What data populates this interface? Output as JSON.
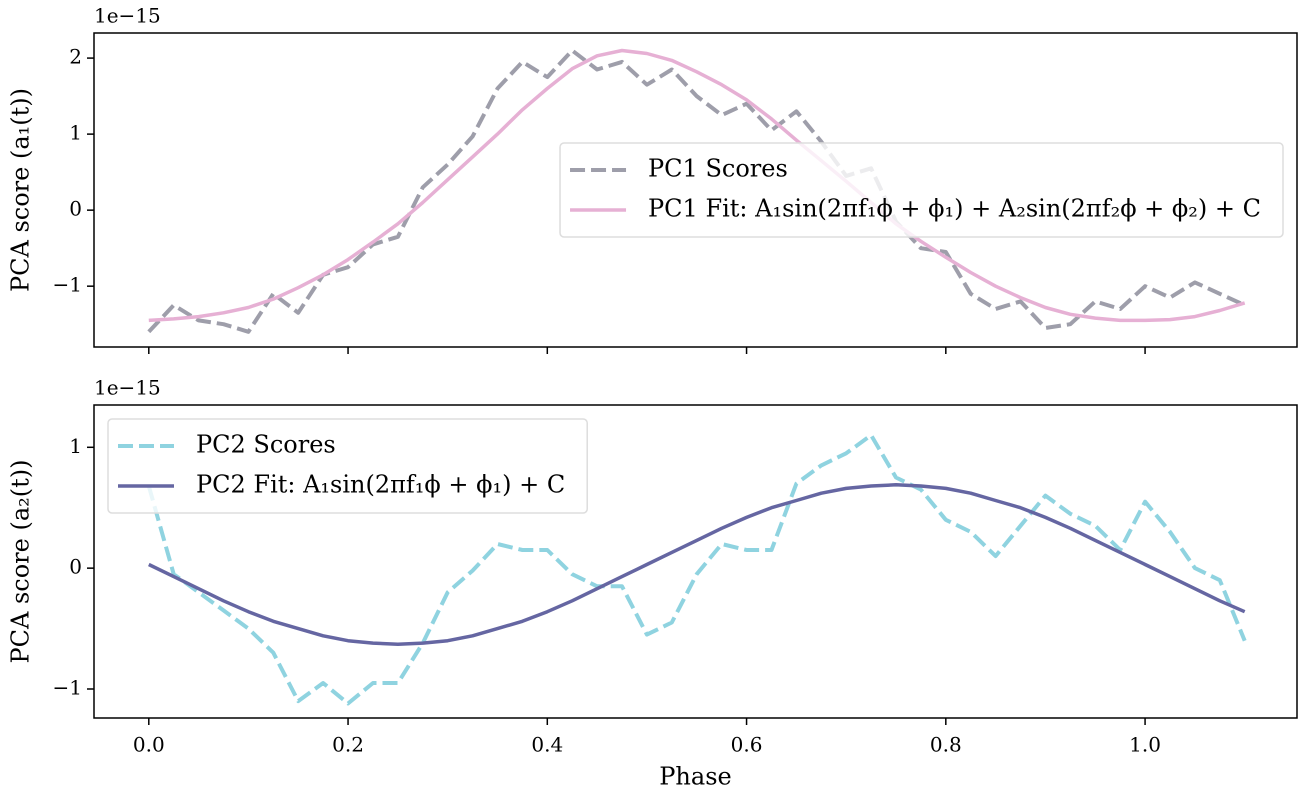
{
  "chart_data": [
    {
      "type": "line",
      "ylabel": "PCA score (a₁(t))",
      "offset_label": "1e−15",
      "x": [
        0,
        0.025,
        0.05,
        0.075,
        0.1,
        0.125,
        0.15,
        0.175,
        0.2,
        0.225,
        0.25,
        0.275,
        0.3,
        0.325,
        0.35,
        0.375,
        0.4,
        0.425,
        0.45,
        0.475,
        0.5,
        0.525,
        0.55,
        0.575,
        0.6,
        0.625,
        0.65,
        0.675,
        0.7,
        0.725,
        0.75,
        0.775,
        0.8,
        0.825,
        0.85,
        0.875,
        0.9,
        0.925,
        0.95,
        0.975,
        1.0,
        1.025,
        1.05,
        1.075,
        1.1
      ],
      "series": [
        {
          "name": "PC1 Scores",
          "color": "#9e9eaa",
          "dashed": true,
          "values": [
            -1.6,
            -1.25,
            -1.45,
            -1.5,
            -1.6,
            -1.1,
            -1.35,
            -0.85,
            -0.75,
            -0.45,
            -0.35,
            0.3,
            0.6,
            0.97,
            1.6,
            1.95,
            1.75,
            2.1,
            1.85,
            1.95,
            1.65,
            1.85,
            1.5,
            1.25,
            1.4,
            1.05,
            1.3,
            0.9,
            0.45,
            0.55,
            -0.15,
            -0.5,
            -0.55,
            -1.1,
            -1.3,
            -1.2,
            -1.55,
            -1.5,
            -1.2,
            -1.3,
            -1.0,
            -1.15,
            -0.95,
            -1.1,
            -1.25
          ]
        },
        {
          "name": "PC1 Fit: A₁sin(2πf₁ϕ + ϕ₁) + A₂sin(2πf₂ϕ + ϕ₂) + C",
          "color": "#e6b0d4",
          "dashed": false,
          "values": [
            -1.45,
            -1.43,
            -1.4,
            -1.35,
            -1.28,
            -1.17,
            -1.02,
            -0.85,
            -0.65,
            -0.42,
            -0.18,
            0.1,
            0.4,
            0.7,
            1.0,
            1.32,
            1.6,
            1.86,
            2.03,
            2.1,
            2.06,
            1.97,
            1.82,
            1.65,
            1.45,
            1.2,
            0.92,
            0.65,
            0.38,
            0.1,
            -0.18,
            -0.41,
            -0.62,
            -0.82,
            -1.0,
            -1.15,
            -1.28,
            -1.37,
            -1.42,
            -1.45,
            -1.45,
            -1.44,
            -1.4,
            -1.32,
            -1.22
          ]
        }
      ],
      "xlim": [
        -0.055,
        1.1525
      ],
      "ylim": [
        -1.8,
        2.33
      ],
      "xticks": [
        0,
        0.2,
        0.4,
        0.6,
        0.8,
        1.0
      ],
      "yticks": [
        {
          "value": -1,
          "label": "−1"
        },
        0,
        1,
        2
      ],
      "legend": "center right"
    },
    {
      "type": "line",
      "ylabel": "PCA score (a₂(t))",
      "offset_label": "1e−15",
      "xlabel": "Phase",
      "x": [
        0,
        0.025,
        0.05,
        0.075,
        0.1,
        0.125,
        0.15,
        0.175,
        0.2,
        0.225,
        0.25,
        0.275,
        0.3,
        0.325,
        0.35,
        0.375,
        0.4,
        0.425,
        0.45,
        0.475,
        0.5,
        0.525,
        0.55,
        0.575,
        0.6,
        0.625,
        0.65,
        0.675,
        0.7,
        0.725,
        0.75,
        0.775,
        0.8,
        0.825,
        0.85,
        0.875,
        0.9,
        0.925,
        0.95,
        0.975,
        1.0,
        1.025,
        1.05,
        1.075,
        1.1
      ],
      "series": [
        {
          "name": "PC2 Scores",
          "color": "#8fd3e0",
          "dashed": true,
          "values": [
            0.68,
            -0.05,
            -0.2,
            -0.35,
            -0.5,
            -0.7,
            -1.1,
            -0.95,
            -1.12,
            -0.95,
            -0.95,
            -0.62,
            -0.2,
            -0.02,
            0.2,
            0.15,
            0.15,
            -0.05,
            -0.15,
            -0.15,
            -0.55,
            -0.45,
            -0.05,
            0.2,
            0.15,
            0.15,
            0.7,
            0.85,
            0.95,
            1.1,
            0.75,
            0.65,
            0.4,
            0.3,
            0.1,
            0.35,
            0.6,
            0.45,
            0.35,
            0.15,
            0.55,
            0.3,
            0.0,
            -0.1,
            -0.6
          ]
        },
        {
          "name": "PC2 Fit: A₁sin(2πf₁ϕ + ϕ₁) + C",
          "color": "#6566a2",
          "dashed": false,
          "values": [
            0.03,
            -0.07,
            -0.17,
            -0.27,
            -0.36,
            -0.44,
            -0.5,
            -0.56,
            -0.6,
            -0.62,
            -0.63,
            -0.62,
            -0.6,
            -0.56,
            -0.5,
            -0.44,
            -0.36,
            -0.27,
            -0.17,
            -0.07,
            0.03,
            0.13,
            0.23,
            0.33,
            0.42,
            0.5,
            0.56,
            0.62,
            0.66,
            0.68,
            0.69,
            0.68,
            0.66,
            0.62,
            0.56,
            0.5,
            0.42,
            0.33,
            0.23,
            0.13,
            0.03,
            -0.07,
            -0.17,
            -0.27,
            -0.36
          ]
        }
      ],
      "xlim": [
        -0.055,
        1.1525
      ],
      "ylim": [
        -1.24,
        1.35
      ],
      "xticks": [
        {
          "value": 0,
          "label": "0.0"
        },
        {
          "value": 0.2,
          "label": "0.2"
        },
        {
          "value": 0.4,
          "label": "0.4"
        },
        {
          "value": 0.6,
          "label": "0.6"
        },
        {
          "value": 0.8,
          "label": "0.8"
        },
        {
          "value": 1.0,
          "label": "1.0"
        }
      ],
      "yticks": [
        {
          "value": -1,
          "label": "−1"
        },
        0,
        1
      ],
      "legend": "upper left"
    }
  ]
}
